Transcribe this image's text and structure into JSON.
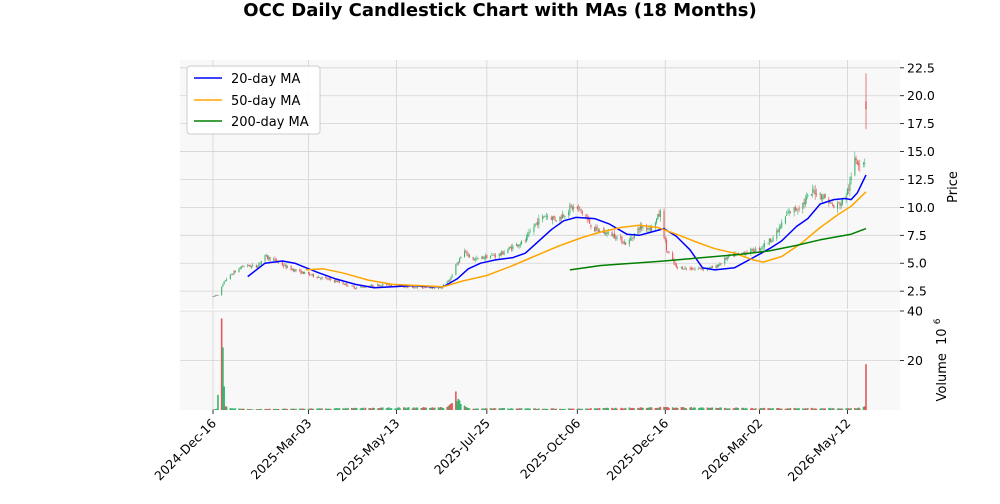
{
  "chart_data": {
    "type": "candlestick",
    "title": "OCC Daily Candlestick Chart with MAs (18 Months)",
    "price_axis": {
      "label": "Price",
      "ylim": [
        0.9,
        23.2
      ],
      "ticks": [
        2.5,
        5.0,
        7.5,
        10.0,
        12.5,
        15.0,
        17.5,
        20.0,
        22.5
      ],
      "tick_labels": [
        "2.5",
        "5.0",
        "7.5",
        "10.0",
        "12.5",
        "15.0",
        "17.5",
        "20.0",
        "22.5"
      ]
    },
    "volume_axis": {
      "label": "Volume",
      "exponent_label": "10",
      "exponent_power": "6",
      "ylim": [
        0,
        40
      ],
      "ticks": [
        20,
        40
      ],
      "tick_labels": [
        "20",
        "40"
      ]
    },
    "x_axis": {
      "start_date": "2024-12-16",
      "end_date": "2026-05-27",
      "tick_dates": [
        "2024-12-16",
        "2025-03-03",
        "2025-05-13",
        "2025-07-25",
        "2025-10-06",
        "2025-12-16",
        "2026-03-02",
        "2026-05-12"
      ],
      "tick_labels": [
        "2024-Dec-16",
        "2025-Mar-03",
        "2025-May-13",
        "2025-Jul-25",
        "2025-Oct-06",
        "2025-Dec-16",
        "2026-Mar-02",
        "2026-May-12"
      ]
    },
    "grid": true,
    "legend_position": "top-left",
    "colors": {
      "up": "#3cb371",
      "down": "#e05a5a",
      "ma20": "#0000ff",
      "ma50": "#ffa500",
      "ma200": "#008000"
    },
    "price_anchors": [
      [
        "2024-12-16",
        2.0
      ],
      [
        "2024-12-20",
        2.2
      ],
      [
        "2024-12-26",
        3.5
      ],
      [
        "2025-01-02",
        4.2
      ],
      [
        "2025-01-10",
        4.8
      ],
      [
        "2025-01-20",
        4.7
      ],
      [
        "2025-01-27",
        5.6
      ],
      [
        "2025-02-05",
        5.2
      ],
      [
        "2025-02-14",
        4.6
      ],
      [
        "2025-02-25",
        4.2
      ],
      [
        "2025-03-10",
        3.8
      ],
      [
        "2025-03-25",
        3.4
      ],
      [
        "2025-04-10",
        2.8
      ],
      [
        "2025-04-25",
        3.0
      ],
      [
        "2025-05-05",
        3.1
      ],
      [
        "2025-05-20",
        2.9
      ],
      [
        "2025-06-05",
        2.8
      ],
      [
        "2025-06-18",
        2.8
      ],
      [
        "2025-06-25",
        3.5
      ],
      [
        "2025-07-01",
        5.0
      ],
      [
        "2025-07-07",
        6.0
      ],
      [
        "2025-07-15",
        5.3
      ],
      [
        "2025-07-25",
        5.6
      ],
      [
        "2025-08-05",
        5.8
      ],
      [
        "2025-08-15",
        6.5
      ],
      [
        "2025-08-25",
        7.0
      ],
      [
        "2025-09-02",
        8.5
      ],
      [
        "2025-09-10",
        9.3
      ],
      [
        "2025-09-20",
        8.9
      ],
      [
        "2025-10-01",
        10.0
      ],
      [
        "2025-10-08",
        9.8
      ],
      [
        "2025-10-20",
        8.0
      ],
      [
        "2025-11-05",
        7.5
      ],
      [
        "2025-11-15",
        6.7
      ],
      [
        "2025-11-25",
        8.2
      ],
      [
        "2025-12-05",
        8.2
      ],
      [
        "2025-12-12",
        9.5
      ],
      [
        "2025-12-17",
        6.2
      ],
      [
        "2025-12-25",
        4.6
      ],
      [
        "2026-01-10",
        4.5
      ],
      [
        "2026-01-25",
        4.6
      ],
      [
        "2026-02-05",
        5.6
      ],
      [
        "2026-02-20",
        6.0
      ],
      [
        "2026-03-02",
        6.3
      ],
      [
        "2026-03-15",
        7.5
      ],
      [
        "2026-03-25",
        9.5
      ],
      [
        "2026-04-05",
        10.2
      ],
      [
        "2026-04-15",
        11.5
      ],
      [
        "2026-04-25",
        10.8
      ],
      [
        "2026-05-01",
        10.0
      ],
      [
        "2026-05-08",
        10.5
      ],
      [
        "2026-05-14",
        12.0
      ],
      [
        "2026-05-18",
        14.5
      ],
      [
        "2026-05-22",
        14.0
      ],
      [
        "2026-05-26",
        14.2
      ]
    ],
    "final_candle": {
      "date": "2026-05-27",
      "open": 19.5,
      "high": 22.0,
      "low": 17.0,
      "close": 18.8
    },
    "ma20": [
      [
        "2025-01-13",
        3.8
      ],
      [
        "2025-01-27",
        5.0
      ],
      [
        "2025-02-10",
        5.2
      ],
      [
        "2025-02-20",
        5.0
      ],
      [
        "2025-03-01",
        4.6
      ],
      [
        "2025-03-10",
        4.2
      ],
      [
        "2025-03-25",
        3.6
      ],
      [
        "2025-04-10",
        3.1
      ],
      [
        "2025-04-25",
        2.8
      ],
      [
        "2025-05-10",
        2.9
      ],
      [
        "2025-05-25",
        3.0
      ],
      [
        "2025-06-10",
        2.9
      ],
      [
        "2025-06-20",
        2.9
      ],
      [
        "2025-07-01",
        3.6
      ],
      [
        "2025-07-10",
        4.5
      ],
      [
        "2025-07-20",
        5.0
      ],
      [
        "2025-08-01",
        5.3
      ],
      [
        "2025-08-15",
        5.5
      ],
      [
        "2025-08-25",
        5.9
      ],
      [
        "2025-09-05",
        7.0
      ],
      [
        "2025-09-15",
        8.0
      ],
      [
        "2025-09-25",
        8.8
      ],
      [
        "2025-10-05",
        9.1
      ],
      [
        "2025-10-20",
        9.0
      ],
      [
        "2025-11-01",
        8.5
      ],
      [
        "2025-11-15",
        7.6
      ],
      [
        "2025-11-25",
        7.5
      ],
      [
        "2025-12-05",
        7.8
      ],
      [
        "2025-12-15",
        8.1
      ],
      [
        "2025-12-25",
        7.4
      ],
      [
        "2026-01-05",
        6.2
      ],
      [
        "2026-01-15",
        4.6
      ],
      [
        "2026-01-25",
        4.4
      ],
      [
        "2026-02-10",
        4.6
      ],
      [
        "2026-02-25",
        5.5
      ],
      [
        "2026-03-10",
        6.3
      ],
      [
        "2026-03-20",
        7.0
      ],
      [
        "2026-04-01",
        8.3
      ],
      [
        "2026-04-10",
        9.0
      ],
      [
        "2026-04-20",
        10.3
      ],
      [
        "2026-05-01",
        10.7
      ],
      [
        "2026-05-10",
        10.8
      ],
      [
        "2026-05-15",
        10.7
      ],
      [
        "2026-05-20",
        11.3
      ],
      [
        "2026-05-27",
        12.9
      ]
    ],
    "ma50": [
      [
        "2025-03-01",
        4.4
      ],
      [
        "2025-03-15",
        4.5
      ],
      [
        "2025-04-01",
        4.1
      ],
      [
        "2025-04-20",
        3.5
      ],
      [
        "2025-05-10",
        3.1
      ],
      [
        "2025-06-01",
        3.0
      ],
      [
        "2025-06-20",
        2.9
      ],
      [
        "2025-07-05",
        3.4
      ],
      [
        "2025-07-25",
        3.9
      ],
      [
        "2025-08-15",
        4.8
      ],
      [
        "2025-09-01",
        5.6
      ],
      [
        "2025-09-20",
        6.5
      ],
      [
        "2025-10-10",
        7.3
      ],
      [
        "2025-10-25",
        7.8
      ],
      [
        "2025-11-10",
        8.2
      ],
      [
        "2025-11-25",
        8.4
      ],
      [
        "2025-12-10",
        8.2
      ],
      [
        "2025-12-25",
        7.6
      ],
      [
        "2026-01-10",
        6.9
      ],
      [
        "2026-01-25",
        6.3
      ],
      [
        "2026-02-10",
        5.9
      ],
      [
        "2026-02-25",
        5.3
      ],
      [
        "2026-03-05",
        5.1
      ],
      [
        "2026-03-20",
        5.6
      ],
      [
        "2026-04-05",
        6.8
      ],
      [
        "2026-04-20",
        8.2
      ],
      [
        "2026-05-05",
        9.4
      ],
      [
        "2026-05-15",
        10.1
      ],
      [
        "2026-05-27",
        11.4
      ]
    ],
    "ma200": [
      [
        "2025-09-30",
        4.4
      ],
      [
        "2025-10-25",
        4.8
      ],
      [
        "2025-12-15",
        5.2
      ],
      [
        "2026-01-15",
        5.5
      ],
      [
        "2026-02-15",
        5.8
      ],
      [
        "2026-03-10",
        6.1
      ],
      [
        "2026-04-01",
        6.6
      ],
      [
        "2026-04-20",
        7.1
      ],
      [
        "2026-05-15",
        7.6
      ],
      [
        "2026-05-27",
        8.1
      ]
    ],
    "volume_anchors": [
      [
        "2024-12-16",
        0.2
      ],
      [
        "2024-12-19",
        0.5
      ],
      [
        "2024-12-23",
        37.0
      ],
      [
        "2024-12-26",
        1.5
      ],
      [
        "2024-12-30",
        0.8
      ],
      [
        "2025-01-06",
        0.6
      ],
      [
        "2025-01-15",
        0.4
      ],
      [
        "2025-06-23",
        1.2
      ],
      [
        "2025-06-26",
        2.5
      ],
      [
        "2025-06-30",
        7.5
      ],
      [
        "2025-07-02",
        4.5
      ],
      [
        "2025-07-07",
        1.8
      ],
      [
        "2025-07-10",
        0.8
      ],
      [
        "2025-10-01",
        0.6
      ],
      [
        "2025-12-17",
        1.2
      ],
      [
        "2026-03-05",
        0.8
      ],
      [
        "2026-05-20",
        0.8
      ],
      [
        "2026-05-26",
        1.5
      ],
      [
        "2026-05-27",
        18.5
      ]
    ],
    "legend": [
      {
        "key": "ma20",
        "label": "20-day MA"
      },
      {
        "key": "ma50",
        "label": "50-day MA"
      },
      {
        "key": "ma200",
        "label": "200-day MA"
      }
    ]
  }
}
